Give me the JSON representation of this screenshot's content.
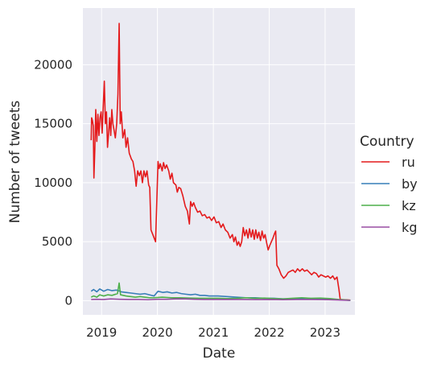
{
  "chart_data": {
    "type": "line",
    "xlabel": "Date",
    "ylabel": "Number of tweets",
    "legend_title": "Country",
    "legend_position": "right",
    "grid": true,
    "xlim": [
      "2018-09-01",
      "2023-07-15"
    ],
    "ylim": [
      -1200,
      24800
    ],
    "x_ticks": [
      {
        "date": "2019-01-01",
        "label": "2019"
      },
      {
        "date": "2020-01-01",
        "label": "2020"
      },
      {
        "date": "2021-01-01",
        "label": "2021"
      },
      {
        "date": "2022-01-01",
        "label": "2022"
      },
      {
        "date": "2023-01-01",
        "label": "2023"
      }
    ],
    "y_ticks": [
      0,
      5000,
      10000,
      15000,
      20000
    ],
    "y_tick_labels": [
      "0",
      "5000",
      "10000",
      "15000",
      "20000"
    ],
    "series": [
      {
        "name": "ru",
        "color": "#e41a1c",
        "points": [
          [
            "2018-10-25",
            13600
          ],
          [
            "2018-10-28",
            15500
          ],
          [
            "2018-11-02",
            15300
          ],
          [
            "2018-11-08",
            14800
          ],
          [
            "2018-11-12",
            10400
          ],
          [
            "2018-11-18",
            12800
          ],
          [
            "2018-11-24",
            16200
          ],
          [
            "2018-12-01",
            13500
          ],
          [
            "2018-12-08",
            15800
          ],
          [
            "2018-12-15",
            14000
          ],
          [
            "2018-12-22",
            15500
          ],
          [
            "2018-12-29",
            16000
          ],
          [
            "2019-01-05",
            14200
          ],
          [
            "2019-01-12",
            16500
          ],
          [
            "2019-01-19",
            18600
          ],
          [
            "2019-01-26",
            15000
          ],
          [
            "2019-02-02",
            16000
          ],
          [
            "2019-02-09",
            13000
          ],
          [
            "2019-02-16",
            14200
          ],
          [
            "2019-02-23",
            15500
          ],
          [
            "2019-03-02",
            14000
          ],
          [
            "2019-03-09",
            16200
          ],
          [
            "2019-03-16",
            15000
          ],
          [
            "2019-03-23",
            14500
          ],
          [
            "2019-04-01",
            13800
          ],
          [
            "2019-04-10",
            15000
          ],
          [
            "2019-04-18",
            17500
          ],
          [
            "2019-04-26",
            23500
          ],
          [
            "2019-05-03",
            15000
          ],
          [
            "2019-05-10",
            16000
          ],
          [
            "2019-05-20",
            13800
          ],
          [
            "2019-06-01",
            14500
          ],
          [
            "2019-06-10",
            13000
          ],
          [
            "2019-06-20",
            13800
          ],
          [
            "2019-07-01",
            12500
          ],
          [
            "2019-07-15",
            12000
          ],
          [
            "2019-07-25",
            11800
          ],
          [
            "2019-08-05",
            11000
          ],
          [
            "2019-08-15",
            9700
          ],
          [
            "2019-08-25",
            11000
          ],
          [
            "2019-09-05",
            10600
          ],
          [
            "2019-09-15",
            11000
          ],
          [
            "2019-09-25",
            10000
          ],
          [
            "2019-10-05",
            11000
          ],
          [
            "2019-10-15",
            10500
          ],
          [
            "2019-10-25",
            11000
          ],
          [
            "2019-11-05",
            9800
          ],
          [
            "2019-11-12",
            9600
          ],
          [
            "2019-11-20",
            6000
          ],
          [
            "2019-12-05",
            5500
          ],
          [
            "2019-12-20",
            5000
          ],
          [
            "2020-01-05",
            11800
          ],
          [
            "2020-01-12",
            11200
          ],
          [
            "2020-01-20",
            11600
          ],
          [
            "2020-02-01",
            11000
          ],
          [
            "2020-02-10",
            11700
          ],
          [
            "2020-02-20",
            11200
          ],
          [
            "2020-03-01",
            11500
          ],
          [
            "2020-03-15",
            11000
          ],
          [
            "2020-03-25",
            10300
          ],
          [
            "2020-04-05",
            10800
          ],
          [
            "2020-04-15",
            10000
          ],
          [
            "2020-05-01",
            9800
          ],
          [
            "2020-05-10",
            9200
          ],
          [
            "2020-05-20",
            9600
          ],
          [
            "2020-06-01",
            9500
          ],
          [
            "2020-06-15",
            8900
          ],
          [
            "2020-07-01",
            8000
          ],
          [
            "2020-07-15",
            7600
          ],
          [
            "2020-07-28",
            6500
          ],
          [
            "2020-08-05",
            8400
          ],
          [
            "2020-08-15",
            8000
          ],
          [
            "2020-08-25",
            8300
          ],
          [
            "2020-09-05",
            7900
          ],
          [
            "2020-09-20",
            7500
          ],
          [
            "2020-10-05",
            7600
          ],
          [
            "2020-10-20",
            7200
          ],
          [
            "2020-11-05",
            7300
          ],
          [
            "2020-11-20",
            7000
          ],
          [
            "2020-12-05",
            7100
          ],
          [
            "2020-12-20",
            6800
          ],
          [
            "2021-01-05",
            7100
          ],
          [
            "2021-01-20",
            6600
          ],
          [
            "2021-02-05",
            6700
          ],
          [
            "2021-02-20",
            6200
          ],
          [
            "2021-03-05",
            6500
          ],
          [
            "2021-03-20",
            6000
          ],
          [
            "2021-04-05",
            5800
          ],
          [
            "2021-04-20",
            5300
          ],
          [
            "2021-05-05",
            5600
          ],
          [
            "2021-05-15",
            5000
          ],
          [
            "2021-05-25",
            5400
          ],
          [
            "2021-06-05",
            4700
          ],
          [
            "2021-06-15",
            5000
          ],
          [
            "2021-06-25",
            4600
          ],
          [
            "2021-07-05",
            5000
          ],
          [
            "2021-07-15",
            6200
          ],
          [
            "2021-07-25",
            5500
          ],
          [
            "2021-08-05",
            6000
          ],
          [
            "2021-08-15",
            5300
          ],
          [
            "2021-08-25",
            6100
          ],
          [
            "2021-09-05",
            5400
          ],
          [
            "2021-09-15",
            6000
          ],
          [
            "2021-09-25",
            5200
          ],
          [
            "2021-10-05",
            6000
          ],
          [
            "2021-10-15",
            5300
          ],
          [
            "2021-10-25",
            5800
          ],
          [
            "2021-11-05",
            5100
          ],
          [
            "2021-11-15",
            5900
          ],
          [
            "2021-11-25",
            5300
          ],
          [
            "2021-12-05",
            5600
          ],
          [
            "2021-12-15",
            4900
          ],
          [
            "2021-12-25",
            4300
          ],
          [
            "2022-01-05",
            4700
          ],
          [
            "2022-01-15",
            5000
          ],
          [
            "2022-01-25",
            5300
          ],
          [
            "2022-02-05",
            5700
          ],
          [
            "2022-02-12",
            5900
          ],
          [
            "2022-02-20",
            3000
          ],
          [
            "2022-03-05",
            2700
          ],
          [
            "2022-03-20",
            2200
          ],
          [
            "2022-04-05",
            1900
          ],
          [
            "2022-04-20",
            2100
          ],
          [
            "2022-05-05",
            2400
          ],
          [
            "2022-05-20",
            2500
          ],
          [
            "2022-06-05",
            2600
          ],
          [
            "2022-06-20",
            2400
          ],
          [
            "2022-07-05",
            2700
          ],
          [
            "2022-07-20",
            2500
          ],
          [
            "2022-08-05",
            2700
          ],
          [
            "2022-08-20",
            2500
          ],
          [
            "2022-09-05",
            2600
          ],
          [
            "2022-09-20",
            2400
          ],
          [
            "2022-10-05",
            2200
          ],
          [
            "2022-10-20",
            2400
          ],
          [
            "2022-11-05",
            2300
          ],
          [
            "2022-11-20",
            2000
          ],
          [
            "2022-12-05",
            2200
          ],
          [
            "2022-12-20",
            2100
          ],
          [
            "2023-01-05",
            2000
          ],
          [
            "2023-01-20",
            2100
          ],
          [
            "2023-02-05",
            1900
          ],
          [
            "2023-02-20",
            2100
          ],
          [
            "2023-03-05",
            1800
          ],
          [
            "2023-03-20",
            2000
          ],
          [
            "2023-04-01",
            1000
          ],
          [
            "2023-04-10",
            100
          ],
          [
            "2023-06-15",
            50
          ]
        ]
      },
      {
        "name": "by",
        "color": "#377eb8",
        "points": [
          [
            "2018-10-25",
            800
          ],
          [
            "2018-11-10",
            950
          ],
          [
            "2018-12-01",
            750
          ],
          [
            "2018-12-20",
            1000
          ],
          [
            "2019-01-15",
            800
          ],
          [
            "2019-02-10",
            950
          ],
          [
            "2019-03-10",
            850
          ],
          [
            "2019-04-10",
            900
          ],
          [
            "2019-05-10",
            750
          ],
          [
            "2019-06-10",
            700
          ],
          [
            "2019-07-10",
            650
          ],
          [
            "2019-08-10",
            600
          ],
          [
            "2019-09-10",
            550
          ],
          [
            "2019-10-10",
            600
          ],
          [
            "2019-11-10",
            500
          ],
          [
            "2019-12-10",
            400
          ],
          [
            "2020-01-05",
            800
          ],
          [
            "2020-02-05",
            700
          ],
          [
            "2020-03-05",
            750
          ],
          [
            "2020-04-05",
            650
          ],
          [
            "2020-05-05",
            700
          ],
          [
            "2020-06-05",
            600
          ],
          [
            "2020-07-05",
            550
          ],
          [
            "2020-08-05",
            500
          ],
          [
            "2020-09-05",
            550
          ],
          [
            "2020-10-05",
            450
          ],
          [
            "2020-11-05",
            450
          ],
          [
            "2020-12-05",
            400
          ],
          [
            "2021-02-01",
            400
          ],
          [
            "2021-04-01",
            350
          ],
          [
            "2021-06-01",
            300
          ],
          [
            "2021-08-01",
            250
          ],
          [
            "2021-10-01",
            250
          ],
          [
            "2021-12-01",
            200
          ],
          [
            "2022-02-01",
            200
          ],
          [
            "2022-04-01",
            150
          ],
          [
            "2022-06-01",
            150
          ],
          [
            "2022-08-01",
            150
          ],
          [
            "2022-10-01",
            120
          ],
          [
            "2022-12-01",
            120
          ],
          [
            "2023-02-01",
            100
          ],
          [
            "2023-04-01",
            80
          ],
          [
            "2023-06-15",
            30
          ]
        ]
      },
      {
        "name": "kz",
        "color": "#4daf4a",
        "points": [
          [
            "2018-10-25",
            300
          ],
          [
            "2018-11-10",
            400
          ],
          [
            "2018-12-01",
            300
          ],
          [
            "2018-12-20",
            500
          ],
          [
            "2019-01-15",
            400
          ],
          [
            "2019-02-10",
            500
          ],
          [
            "2019-03-10",
            450
          ],
          [
            "2019-04-15",
            600
          ],
          [
            "2019-04-26",
            1500
          ],
          [
            "2019-05-05",
            500
          ],
          [
            "2019-06-10",
            400
          ],
          [
            "2019-07-10",
            350
          ],
          [
            "2019-08-10",
            300
          ],
          [
            "2019-09-10",
            350
          ],
          [
            "2019-10-10",
            300
          ],
          [
            "2019-11-10",
            250
          ],
          [
            "2019-12-10",
            250
          ],
          [
            "2020-02-01",
            300
          ],
          [
            "2020-04-01",
            250
          ],
          [
            "2020-06-01",
            250
          ],
          [
            "2020-08-01",
            220
          ],
          [
            "2020-10-01",
            200
          ],
          [
            "2020-12-01",
            200
          ],
          [
            "2021-02-01",
            200
          ],
          [
            "2021-04-01",
            180
          ],
          [
            "2021-06-01",
            200
          ],
          [
            "2021-08-01",
            250
          ],
          [
            "2021-10-01",
            200
          ],
          [
            "2021-12-01",
            220
          ],
          [
            "2022-02-01",
            180
          ],
          [
            "2022-04-01",
            150
          ],
          [
            "2022-06-01",
            200
          ],
          [
            "2022-08-01",
            250
          ],
          [
            "2022-10-01",
            200
          ],
          [
            "2022-12-01",
            220
          ],
          [
            "2023-02-01",
            180
          ],
          [
            "2023-04-01",
            100
          ],
          [
            "2023-06-15",
            30
          ]
        ]
      },
      {
        "name": "kg",
        "color": "#984ea3",
        "points": [
          [
            "2018-10-25",
            100
          ],
          [
            "2018-12-01",
            120
          ],
          [
            "2019-01-15",
            100
          ],
          [
            "2019-03-01",
            150
          ],
          [
            "2019-05-01",
            120
          ],
          [
            "2019-07-01",
            100
          ],
          [
            "2019-09-01",
            100
          ],
          [
            "2019-11-01",
            80
          ],
          [
            "2020-01-01",
            120
          ],
          [
            "2020-03-01",
            120
          ],
          [
            "2020-05-01",
            150
          ],
          [
            "2020-07-01",
            150
          ],
          [
            "2020-09-01",
            120
          ],
          [
            "2020-11-01",
            100
          ],
          [
            "2021-01-01",
            100
          ],
          [
            "2021-04-01",
            100
          ],
          [
            "2021-07-01",
            100
          ],
          [
            "2021-10-01",
            90
          ],
          [
            "2022-01-01",
            100
          ],
          [
            "2022-04-01",
            80
          ],
          [
            "2022-07-01",
            100
          ],
          [
            "2022-10-01",
            100
          ],
          [
            "2023-01-01",
            90
          ],
          [
            "2023-04-01",
            60
          ],
          [
            "2023-06-15",
            20
          ]
        ]
      }
    ]
  }
}
